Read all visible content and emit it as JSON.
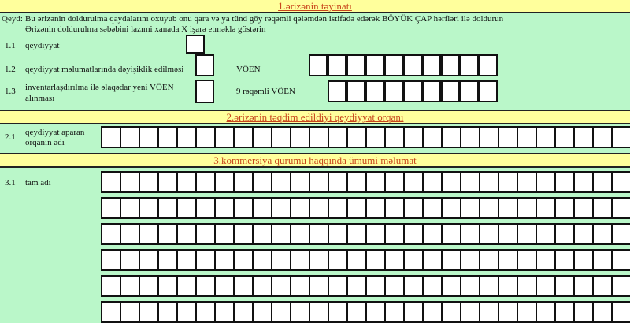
{
  "section1": {
    "title": "1.ərizənin təyinatı",
    "note_label": "Qeyd:",
    "note_line1": "Bu ərizənin doldurulma qaydalarını oxuyub onu qara və ya tünd göy rəqəmli qələmdən istifadə edərək BÖYÜK ÇAP hərfləri ilə doldurun",
    "note_line2": "Ərizənin doldurulma səbəbini lazımi xanada X işarə etməklə göstərin",
    "items": [
      {
        "num": "1.1",
        "label": "qeydiyyat"
      },
      {
        "num": "1.2",
        "label": "qeydiyyat məlumatlarında dəyişiklik edilməsi"
      },
      {
        "num": "1.3",
        "label": "inventarlaşdırılma ilə əlaqədar yeni VÖEN alınması"
      }
    ],
    "voen_label": "VÖEN",
    "voen9_label": "9 rəqəmli VÖEN"
  },
  "section2": {
    "title": "2.ərizənin təqdim edildiyi qeydiyyat orqanı",
    "item": {
      "num": "2.1",
      "label": "qeydiyyat aparan orqanın adı"
    }
  },
  "section3": {
    "title": "3.kommersiya qurumu haqqında ümumi məlumat",
    "item": {
      "num": "3.1",
      "label": "tam adı"
    }
  },
  "colors": {
    "background": "#baf7c9",
    "band": "#ffff9c",
    "title": "#c8461c"
  }
}
